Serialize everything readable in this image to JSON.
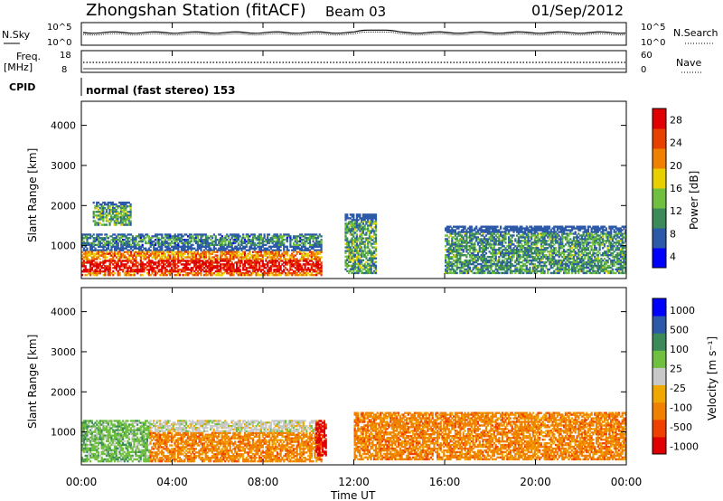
{
  "header": {
    "station_title": "Zhongshan Station (fitACF)",
    "beam": "Beam 03",
    "date": "01/Sep/2012"
  },
  "noise_panel": {
    "left_label": "N.Sky",
    "right_label": "N.Search",
    "left_ticks": [
      "10^5",
      "10^0"
    ],
    "right_ticks": [
      "10^5",
      "10^0"
    ]
  },
  "freq_panel": {
    "left_label_line1": "Freq.",
    "left_label_line2": "[MHz]",
    "left_ticks": [
      "18",
      "8"
    ],
    "right_label": "Nave",
    "right_ticks": [
      "60",
      "0"
    ]
  },
  "cpid_panel": {
    "label": "CPID",
    "text": "normal (fast stereo) 153"
  },
  "x_axis": {
    "label": "Time UT",
    "ticks": [
      "00:00",
      "04:00",
      "08:00",
      "12:00",
      "16:00",
      "20:00",
      "00:00"
    ]
  },
  "colors": {
    "power": [
      "#0000ff",
      "#2c5aa8",
      "#3a8a5a",
      "#70c040",
      "#e8d000",
      "#f08000",
      "#e84000",
      "#e00000"
    ],
    "velocity": [
      "#e00000",
      "#f04000",
      "#f08000",
      "#f0a800",
      "#c8c8c8",
      "#70c040",
      "#3a8a5a",
      "#2c5aa8",
      "#0000ff"
    ]
  },
  "chart_data": [
    {
      "type": "heatmap",
      "panel": "power",
      "ylabel": "Slant Range [km]",
      "yticks": [
        "1000",
        "2000",
        "3000",
        "4000"
      ],
      "ylim": [
        180,
        4600
      ],
      "xlim": [
        0,
        24
      ],
      "colorbar": {
        "label": "Power [dB]",
        "ticks": [
          "4",
          "8",
          "12",
          "16",
          "20",
          "24",
          "28"
        ],
        "range": [
          0,
          30
        ]
      },
      "regions": [
        {
          "t0": 0.0,
          "t1": 10.6,
          "r0": 250,
          "r1": 1000,
          "level": 22,
          "note": "strong echoes, peaking near 600 km"
        },
        {
          "t0": 0.0,
          "t1": 10.6,
          "r0": 1000,
          "r1": 1300,
          "level": 8
        },
        {
          "t0": 0.5,
          "t1": 2.2,
          "r0": 1500,
          "r1": 2100,
          "level": 10
        },
        {
          "t0": 11.6,
          "t1": 13.0,
          "r0": 300,
          "r1": 1800,
          "level": 10
        },
        {
          "t0": 16.0,
          "t1": 24.0,
          "r0": 300,
          "r1": 1500,
          "level": 9
        }
      ]
    },
    {
      "type": "heatmap",
      "panel": "velocity",
      "ylabel": "Slant Range [km]",
      "yticks": [
        "1000",
        "2000",
        "3000",
        "4000"
      ],
      "ylim": [
        180,
        4600
      ],
      "xlim": [
        0,
        24
      ],
      "colorbar": {
        "label": "Velocity [m s⁻¹]",
        "ticks": [
          "1000",
          "500",
          "100",
          "25",
          "-25",
          "-100",
          "-500",
          "-1000"
        ]
      },
      "regions": [
        {
          "t0": 0.0,
          "t1": 3.0,
          "r0": 250,
          "r1": 1300,
          "level": 100,
          "note": "mixed green / blue"
        },
        {
          "t0": 3.0,
          "t1": 10.6,
          "r0": 250,
          "r1": 1000,
          "level": -100
        },
        {
          "t0": 3.0,
          "t1": 10.6,
          "r0": 1000,
          "r1": 1300,
          "level": 0
        },
        {
          "t0": 10.3,
          "t1": 10.8,
          "r0": 400,
          "r1": 1300,
          "level": -1000
        },
        {
          "t0": 12.0,
          "t1": 24.0,
          "r0": 300,
          "r1": 1500,
          "level": -100
        }
      ]
    }
  ]
}
